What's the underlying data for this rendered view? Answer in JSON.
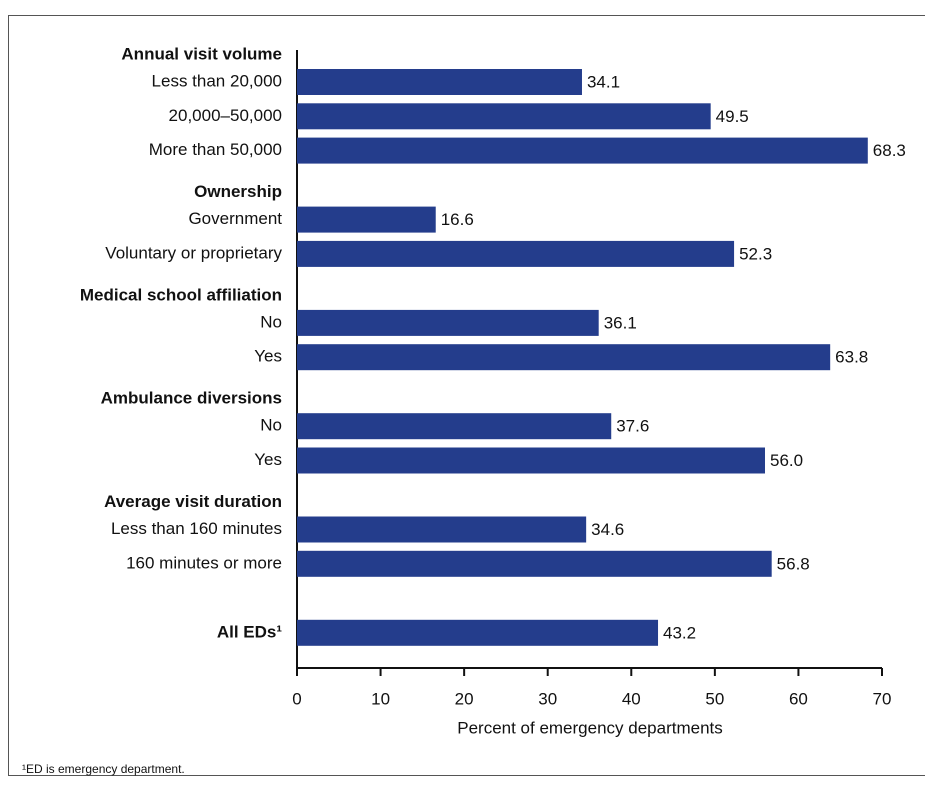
{
  "chart_data": {
    "type": "bar",
    "orientation": "horizontal",
    "color": "#243d8c",
    "groups": [
      {
        "name": "Annual visit volume",
        "categories": [
          "Less than 20,000",
          "20,000–50,000",
          "More than 50,000"
        ],
        "values": [
          34.1,
          49.5,
          68.3
        ],
        "value_labels": [
          "34.1",
          "49.5",
          "68.3"
        ]
      },
      {
        "name": "Ownership",
        "categories": [
          "Government",
          "Voluntary or proprietary"
        ],
        "values": [
          16.6,
          52.3
        ],
        "value_labels": [
          "16.6",
          "52.3"
        ]
      },
      {
        "name": "Medical school affiliation",
        "categories": [
          "No",
          "Yes"
        ],
        "values": [
          36.1,
          63.8
        ],
        "value_labels": [
          "36.1",
          "63.8"
        ]
      },
      {
        "name": "Ambulance diversions",
        "categories": [
          "No",
          "Yes"
        ],
        "values": [
          37.6,
          56.0
        ],
        "value_labels": [
          "37.6",
          "56.0"
        ]
      },
      {
        "name": "Average visit duration",
        "categories": [
          "Less than 160 minutes",
          "160 minutes or more"
        ],
        "values": [
          34.6,
          56.8
        ],
        "value_labels": [
          "34.6",
          "56.8"
        ]
      },
      {
        "name": "All EDs¹",
        "categories": [
          null
        ],
        "values": [
          43.2
        ],
        "value_labels": [
          "43.2"
        ]
      }
    ],
    "xlabel": "Percent of emergency departments",
    "xlim": [
      0,
      70
    ],
    "xticks": [
      0,
      10,
      20,
      30,
      40,
      50,
      60,
      70
    ],
    "footnote": "¹ED is emergency department."
  }
}
